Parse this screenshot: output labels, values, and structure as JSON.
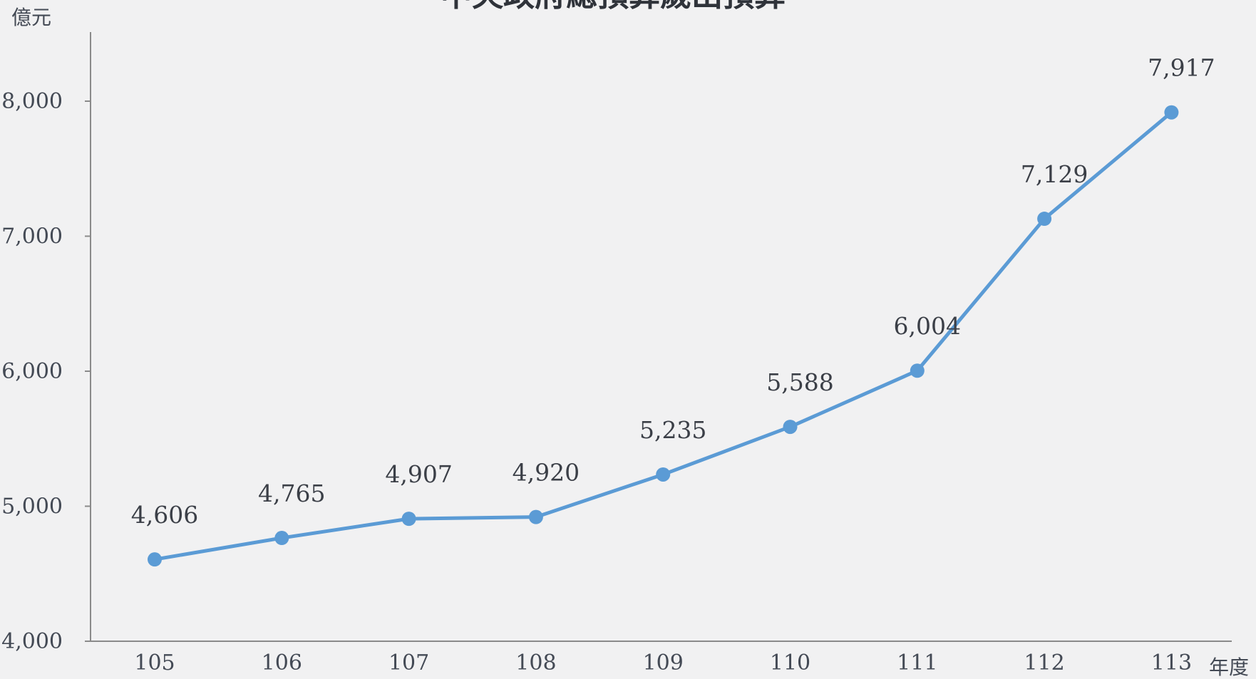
{
  "chart_data": {
    "type": "line",
    "title": "中央政府總預算歲出預算",
    "ylabel": "億元",
    "xlabel": "年度",
    "categories": [
      "105",
      "106",
      "107",
      "108",
      "109",
      "110",
      "111",
      "112",
      "113"
    ],
    "series": [
      {
        "values": [
          4606,
          4765,
          4907,
          4920,
          5235,
          5588,
          6004,
          7129,
          7917
        ],
        "labels": [
          "4,606",
          "4,765",
          "4,907",
          "4,920",
          "5,235",
          "5,588",
          "6,004",
          "7,129",
          "7,917"
        ]
      }
    ],
    "yticks": [
      4000,
      5000,
      6000,
      7000,
      8000
    ],
    "ytick_labels": [
      "4,000",
      "5,000",
      "6,000",
      "7,000",
      "8,000"
    ],
    "ylim": [
      4000,
      8500
    ],
    "grid": false,
    "legend": "none",
    "line_color": "#5b9bd5",
    "axis_color": "#8a8a8a"
  }
}
